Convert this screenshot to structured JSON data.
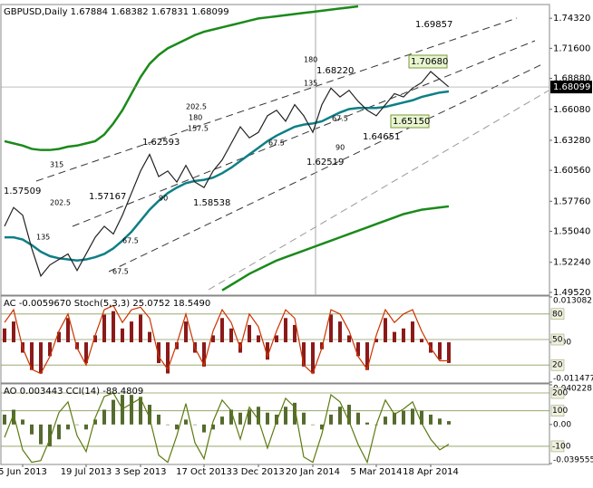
{
  "chart_data": [
    {
      "type": "line",
      "title": "GBPUSD,Daily  1.67884 1.68382 1.67831 1.68099",
      "categories": [
        null,
        null,
        "5 Jun 2013",
        null,
        null,
        null,
        null,
        null,
        null,
        "19 Jul 2013",
        null,
        null,
        null,
        null,
        null,
        "3 Sep 2013",
        null,
        null,
        null,
        null,
        null,
        null,
        "17 Oct 2013",
        null,
        null,
        null,
        null,
        null,
        "3 Dec 2013",
        null,
        null,
        null,
        null,
        null,
        "20 Jan 2014",
        null,
        null,
        null,
        null,
        null,
        null,
        "5 Mar 2014",
        null,
        null,
        null,
        null,
        null,
        "18 Apr 2014",
        null,
        null
      ],
      "series": [
        {
          "color": "#1a8a1a",
          "values": [
            1.632,
            1.63,
            1.628,
            1.625,
            1.624,
            1.624,
            1.625,
            1.627,
            1.628,
            1.63,
            1.632,
            1.638,
            1.648,
            1.66,
            1.675,
            1.69,
            1.702,
            1.71,
            1.716,
            1.72,
            1.724,
            1.728,
            1.731,
            1.733,
            1.735,
            1.737,
            1.739,
            1.741,
            1.743,
            1.744,
            1.745,
            1.746,
            1.747,
            1.748,
            1.749,
            1.75,
            1.751,
            1.752,
            1.753,
            1.754,
            null,
            null,
            null,
            null,
            null,
            null,
            null,
            null,
            null,
            null
          ]
        },
        {
          "color": "#1a8a1a",
          "values": [
            null,
            null,
            null,
            null,
            null,
            null,
            null,
            null,
            null,
            null,
            null,
            null,
            null,
            null,
            null,
            null,
            null,
            null,
            null,
            null,
            null,
            null,
            null,
            null,
            1.497,
            1.502,
            1.507,
            1.512,
            1.516,
            1.52,
            1.524,
            1.527,
            1.53,
            1.533,
            1.536,
            1.539,
            1.542,
            1.545,
            1.548,
            1.551,
            1.554,
            1.557,
            1.56,
            1.563,
            1.566,
            1.568,
            1.57,
            1.571,
            1.572,
            1.573
          ]
        },
        {
          "color": "#0e7f86",
          "values": [
            1.545,
            1.545,
            1.543,
            1.538,
            1.532,
            1.528,
            1.526,
            1.525,
            1.524,
            1.525,
            1.527,
            1.53,
            1.535,
            1.542,
            1.55,
            1.56,
            1.57,
            1.578,
            1.585,
            1.59,
            1.594,
            1.596,
            1.597,
            1.599,
            1.603,
            1.608,
            1.614,
            1.62,
            1.626,
            1.632,
            1.637,
            1.641,
            1.645,
            1.647,
            1.648,
            1.65,
            1.654,
            1.658,
            1.661,
            1.662,
            1.662,
            1.662,
            1.663,
            1.665,
            1.667,
            1.669,
            1.672,
            1.674,
            1.676,
            1.677
          ]
        },
        {
          "color": "#222222",
          "values": [
            1.555,
            1.572,
            1.565,
            1.535,
            1.51,
            1.52,
            1.525,
            1.53,
            1.515,
            1.53,
            1.545,
            1.555,
            1.548,
            1.565,
            1.585,
            1.605,
            1.62,
            1.6,
            1.605,
            1.595,
            1.61,
            1.595,
            1.59,
            1.605,
            1.615,
            1.63,
            1.645,
            1.635,
            1.64,
            1.655,
            1.66,
            1.65,
            1.665,
            1.655,
            1.64,
            1.665,
            1.68,
            1.672,
            1.678,
            1.668,
            1.66,
            1.655,
            1.665,
            1.675,
            1.672,
            1.68,
            1.685,
            1.695,
            1.688,
            1.681
          ]
        }
      ],
      "ylim": [
        1.4935,
        1.7548
      ],
      "yticks": [
        {
          "value": 1.7432,
          "label": "1.74320"
        },
        {
          "value": 1.716,
          "label": "1.71600"
        },
        {
          "value": 1.6888,
          "label": "1.68880"
        },
        {
          "value": 1.6608,
          "label": "1.66080"
        },
        {
          "value": 1.6328,
          "label": "1.63280"
        },
        {
          "value": 1.6056,
          "label": "1.60560"
        },
        {
          "value": 1.5776,
          "label": "1.57760"
        },
        {
          "value": 1.5504,
          "label": "1.55040"
        },
        {
          "value": 1.5224,
          "label": "1.52240"
        },
        {
          "value": 1.4952,
          "label": "1.49520"
        }
      ],
      "last_price": 1.68099,
      "annotations": [
        "1.57509",
        "1.57167",
        "1.62593",
        "1.58538",
        "1.68220",
        "1.62519",
        "1.64651",
        "1.69857",
        "1.70680",
        "1.65150",
        "180",
        "135",
        "202.5",
        "180",
        "157.5",
        "315",
        "202.5",
        "135",
        "67.5",
        "90",
        "67.5",
        "90",
        "67.5",
        "67.5"
      ]
    },
    {
      "type": "combo",
      "title": "AC -0.0059670  Stoch(5,3,3) 25.0752 18.5490",
      "series": [
        {
          "type": "bar",
          "axis": "y2",
          "color": "#8b1a1a",
          "values": [
            0.004,
            0.006,
            -0.003,
            -0.008,
            -0.009,
            -0.004,
            0.003,
            0.007,
            -0.002,
            -0.006,
            0.002,
            0.008,
            0.009,
            0.004,
            0.006,
            0.008,
            0.003,
            -0.006,
            -0.009,
            -0.002,
            0.006,
            -0.003,
            -0.007,
            0.002,
            0.007,
            0.004,
            -0.003,
            0.005,
            0.002,
            -0.005,
            0.002,
            0.007,
            0.005,
            -0.007,
            -0.009,
            -0.002,
            0.008,
            0.006,
            0.002,
            -0.004,
            -0.008,
            0.001,
            0.007,
            0.003,
            0.004,
            0.006,
            0.001,
            -0.003,
            -0.005,
            -0.005967
          ]
        },
        {
          "type": "line",
          "color": "#cc3300",
          "values": [
            70,
            85,
            40,
            15,
            10,
            30,
            60,
            80,
            40,
            20,
            55,
            85,
            90,
            70,
            85,
            88,
            75,
            30,
            15,
            45,
            80,
            40,
            20,
            60,
            85,
            70,
            40,
            80,
            65,
            30,
            60,
            85,
            75,
            20,
            10,
            40,
            85,
            80,
            60,
            30,
            15,
            55,
            85,
            70,
            80,
            85,
            60,
            40,
            25,
            25.0752
          ]
        }
      ],
      "ylim": [
        0,
        100
      ],
      "yticks": [
        80,
        50,
        20
      ],
      "y2lim": [
        -0.011477,
        0.013082
      ],
      "y2ticks": [
        {
          "value": 0.013082,
          "label": "0.013082"
        },
        {
          "value": 0,
          "label": "0.00"
        },
        {
          "value": -0.011477,
          "label": "-0.011477"
        }
      ]
    },
    {
      "type": "combo",
      "title": "AO 0.003443  CCI(14) -88.4809",
      "series": [
        {
          "type": "bar",
          "axis": "y2",
          "color": "#556b2f",
          "values": [
            0.01,
            0.015,
            0.005,
            -0.01,
            -0.02,
            -0.022,
            -0.015,
            -0.005,
            0,
            -0.005,
            0.005,
            0.015,
            0.025,
            0.03,
            0.03,
            0.028,
            0.02,
            0.01,
            0,
            -0.005,
            0.005,
            0,
            -0.008,
            -0.005,
            0.008,
            0.015,
            0.012,
            0.015,
            0.018,
            0.012,
            0.01,
            0.018,
            0.022,
            0.012,
            0,
            -0.005,
            0.01,
            0.018,
            0.02,
            0.012,
            0.002,
            0,
            0.008,
            0.012,
            0.014,
            0.016,
            0.014,
            0.01,
            0.006,
            0.003443
          ]
        },
        {
          "type": "line",
          "color": "#5c7a10",
          "values": [
            -50,
            80,
            -120,
            -190,
            -180,
            -60,
            90,
            150,
            -40,
            -130,
            60,
            180,
            200,
            110,
            140,
            170,
            60,
            -150,
            -190,
            -40,
            140,
            -80,
            -170,
            40,
            160,
            100,
            -60,
            120,
            50,
            -110,
            40,
            170,
            120,
            -160,
            -190,
            -30,
            190,
            150,
            40,
            -90,
            -190,
            20,
            160,
            80,
            110,
            150,
            30,
            -60,
            -120,
            -88.4809
          ]
        }
      ],
      "ylim": [
        -197,
        246
      ],
      "yticks": [
        200,
        100,
        -100
      ],
      "y2lim": [
        -0.039555,
        0.040228
      ],
      "y2ticks": [
        {
          "value": 0.040228,
          "label": "0.040228"
        },
        {
          "value": 0,
          "label": "0.00"
        },
        {
          "value": -0.039555,
          "label": "-0.039555"
        }
      ]
    }
  ]
}
